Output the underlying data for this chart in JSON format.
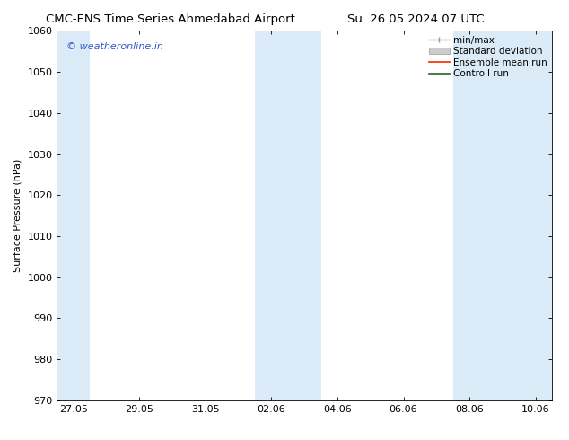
{
  "title_left": "CMC-ENS Time Series Ahmedabad Airport",
  "title_right": "Su. 26.05.2024 07 UTC",
  "ylabel": "Surface Pressure (hPa)",
  "ylim": [
    970,
    1060
  ],
  "yticks": [
    970,
    980,
    990,
    1000,
    1010,
    1020,
    1030,
    1040,
    1050,
    1060
  ],
  "xtick_labels": [
    "27.05",
    "29.05",
    "31.05",
    "02.06",
    "04.06",
    "06.06",
    "08.06",
    "10.06"
  ],
  "xtick_positions": [
    0,
    2,
    4,
    6,
    8,
    10,
    12,
    14
  ],
  "xlim": [
    -0.5,
    14.5
  ],
  "shaded_bands": [
    {
      "x_start": -0.5,
      "x_end": 0.5
    },
    {
      "x_start": 5.5,
      "x_end": 7.5
    },
    {
      "x_start": 11.5,
      "x_end": 14.5
    }
  ],
  "shade_color": "#daeaf7",
  "background_color": "#ffffff",
  "watermark_text": "© weatheronline.in",
  "watermark_color": "#3355cc",
  "legend_items": [
    {
      "label": "min/max",
      "color": "#aaaaaa",
      "type": "errorbar"
    },
    {
      "label": "Standard deviation",
      "color": "#cccccc",
      "type": "fill"
    },
    {
      "label": "Ensemble mean run",
      "color": "#ff0000",
      "type": "line"
    },
    {
      "label": "Controll run",
      "color": "#226622",
      "type": "line"
    }
  ],
  "title_fontsize": 9.5,
  "axis_fontsize": 8,
  "tick_fontsize": 8,
  "legend_fontsize": 7.5,
  "watermark_fontsize": 8
}
